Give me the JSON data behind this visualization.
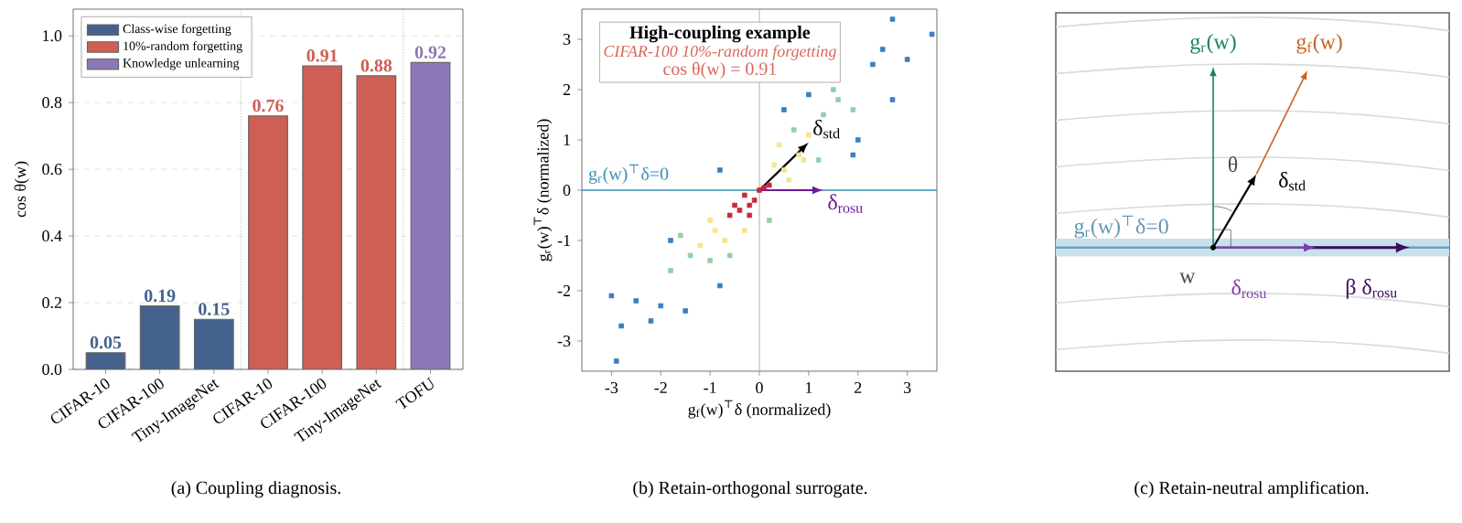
{
  "chart_data": [
    {
      "type": "bar",
      "ylabel": "cos θ(w)",
      "categories": [
        "CIFAR-10",
        "CIFAR-100",
        "Tiny-ImageNet",
        "CIFAR-10",
        "CIFAR-100",
        "Tiny-ImageNet",
        "TOFU"
      ],
      "series": [
        {
          "name": "Class-wise forgetting",
          "color": "#44628d",
          "values": [
            0.05,
            0.19,
            0.15,
            null,
            null,
            null,
            null
          ]
        },
        {
          "name": "10%-random forgetting",
          "color": "#cd5f55",
          "values": [
            null,
            null,
            null,
            0.76,
            0.91,
            0.88,
            null
          ]
        },
        {
          "name": "Knowledge unlearning",
          "color": "#8c78b6",
          "values": [
            null,
            null,
            null,
            null,
            null,
            null,
            0.92
          ]
        }
      ],
      "ylim": [
        0,
        1.08
      ],
      "yticks": [
        {
          "value": 0,
          "label": "0.0"
        },
        {
          "value": 0.2,
          "label": "0.2"
        },
        {
          "value": 0.4,
          "label": "0.4"
        },
        {
          "value": 0.6,
          "label": "0.6"
        },
        {
          "value": 0.8,
          "label": "0.8"
        },
        {
          "value": 1.0,
          "label": "1.0"
        }
      ],
      "grid": "y",
      "legend": "top left",
      "data_labels": true,
      "annotations": [
        "(a) Coupling diagnosis."
      ]
    },
    {
      "type": "scatter",
      "xlabel": "g$_{f}$(w)$^{⊤}$δ (normalized)",
      "ylabel": "g$_{r}$(w)$^{⊤}$δ (normalized)",
      "xlim": [
        -3.6,
        3.6
      ],
      "ylim": [
        -3.6,
        3.6
      ],
      "xticks": [
        -3,
        -2,
        -1,
        0,
        1,
        2,
        3
      ],
      "yticks": [
        -3,
        -2,
        -1,
        0,
        1,
        2,
        3
      ],
      "marker": "square",
      "series": [
        {
          "color": "#3a7fbf",
          "x": [
            2.7,
            -2.9,
            3.5,
            -3.0,
            2.3,
            -2.5,
            2.7,
            -2.0,
            1.0,
            -1.8,
            2.0,
            -0.8,
            3.0,
            -2.2,
            0.5,
            1.9,
            -1.5,
            -0.8,
            2.5,
            -2.8
          ],
          "values": [
            3.4,
            -3.4,
            3.1,
            -2.1,
            2.5,
            -2.2,
            1.8,
            -2.3,
            1.9,
            -1.0,
            1.0,
            -1.9,
            2.6,
            -2.6,
            1.6,
            0.7,
            -2.4,
            0.4,
            2.8,
            -2.7
          ]
        },
        {
          "color": "#8fd0a4",
          "x": [
            1.3,
            -1.4,
            1.6,
            -1.0,
            0.7,
            -1.6,
            1.9,
            -0.6,
            1.2,
            -1.8,
            1.5,
            0.2
          ],
          "values": [
            1.5,
            -1.3,
            1.8,
            -1.4,
            1.2,
            -0.9,
            1.6,
            -1.3,
            0.6,
            -1.6,
            2.0,
            -0.6
          ]
        },
        {
          "color": "#f4e58e",
          "x": [
            0.5,
            -0.9,
            0.8,
            -1.0,
            0.3,
            -0.7,
            1.0,
            0.6,
            -1.2,
            0.9,
            -0.3,
            0.4
          ],
          "values": [
            0.4,
            -0.8,
            0.7,
            -0.6,
            0.5,
            -1.0,
            1.1,
            0.2,
            -1.1,
            0.6,
            -0.8,
            0.9
          ]
        },
        {
          "color": "#c9283c",
          "x": [
            -0.4,
            -0.2,
            0.0,
            -0.6,
            0.1,
            -0.3,
            -0.1,
            0.2,
            -0.5,
            -0.2
          ],
          "values": [
            -0.4,
            -0.3,
            0.0,
            -0.5,
            0.05,
            -0.1,
            -0.2,
            0.1,
            -0.3,
            -0.5
          ]
        }
      ],
      "ref_lines": [
        {
          "axis": "y",
          "value": 0,
          "label": "g$_{r}$(w)$^{⊤}$δ=0",
          "color": "#3a8fb7"
        },
        {
          "axis": "x",
          "value": 0,
          "color": "#bbbbbb"
        }
      ],
      "annotations": [
        "High-coupling example",
        "CIFAR-100 10%-random forgetting",
        "cos θ(w) = 0.91",
        {
          "text": "δ$_{std}$",
          "x": 1.0,
          "y": 0.95
        },
        {
          "text": "δ$_{rosu}$",
          "x": 1.3,
          "y": 0
        },
        "(b) Retain-orthogonal surrogate."
      ]
    },
    {
      "type": "other",
      "annotations": [
        "g$_{r}$(w)",
        "g$_{f}$(w)",
        "θ",
        "δ$_{std}$",
        "g$_{r}$(w)$^{⊤}$δ=0",
        "w",
        "δ$_{rosu}$",
        "β δ$_{rosu}$",
        "(c) Retain-neutral amplification."
      ]
    }
  ]
}
